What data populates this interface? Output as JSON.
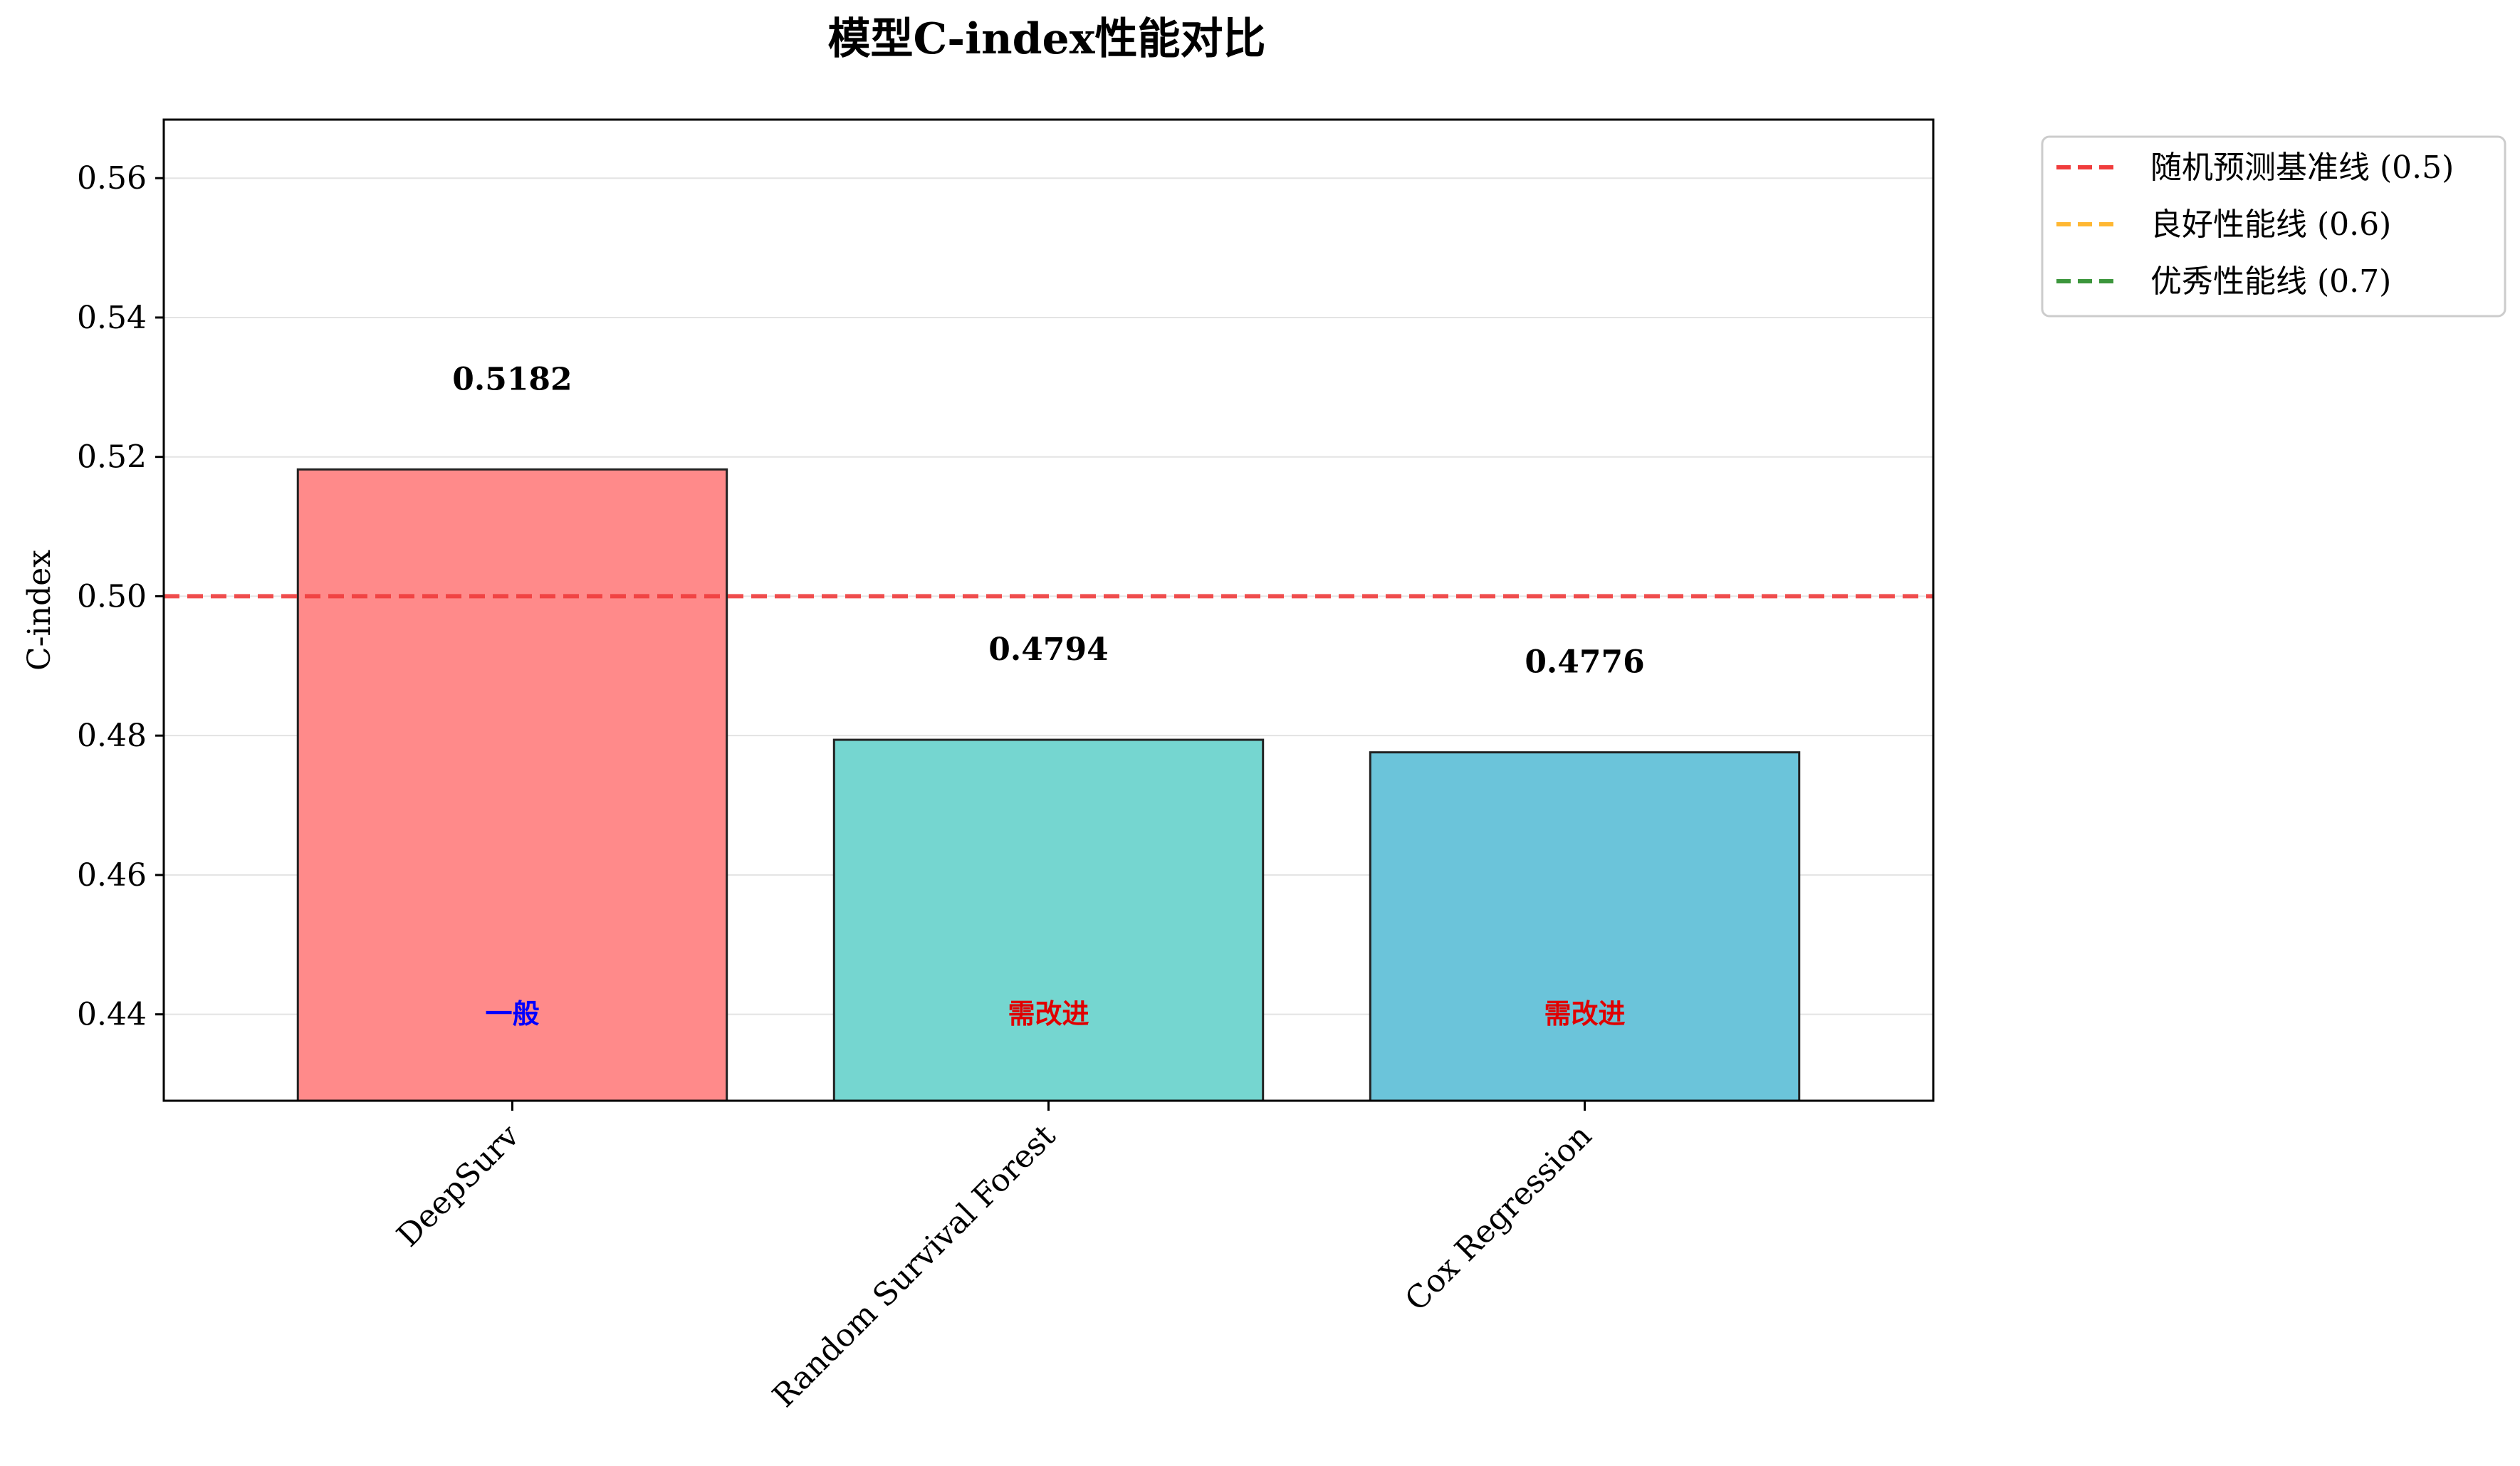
{
  "chart_data": {
    "type": "bar",
    "title": "模型C-index性能对比",
    "xlabel": "",
    "ylabel": "C-index",
    "ylim": [
      0.4276,
      0.5684
    ],
    "yticks": [
      0.44,
      0.46,
      0.48,
      0.5,
      0.52,
      0.54,
      0.56
    ],
    "ytick_labels": [
      "0.44",
      "0.46",
      "0.48",
      "0.50",
      "0.52",
      "0.54",
      "0.56"
    ],
    "grid": "y",
    "categories": [
      "DeepSurv",
      "Random Survival Forest",
      "Cox Regression"
    ],
    "values": [
      0.5182,
      0.4794,
      0.4776
    ],
    "value_labels": [
      "0.5182",
      "0.4794",
      "0.4776"
    ],
    "bar_colors": [
      "#ff8a8a",
      "#75d6d0",
      "#6bc4da"
    ],
    "grade_labels": [
      "一般",
      "需改进",
      "需改进"
    ],
    "grade_colors": [
      "#0000ff",
      "#e00000",
      "#e00000"
    ],
    "reference_lines": [
      {
        "name": "随机预测基准线 (0.5)",
        "value": 0.5,
        "color": "#f03c3c"
      },
      {
        "name": "良好性能线 (0.6)",
        "value": 0.6,
        "color": "#ffb732"
      },
      {
        "name": "优秀性能线 (0.7)",
        "value": 0.7,
        "color": "#3c963c"
      }
    ],
    "legend_position": "outside-top-right"
  }
}
